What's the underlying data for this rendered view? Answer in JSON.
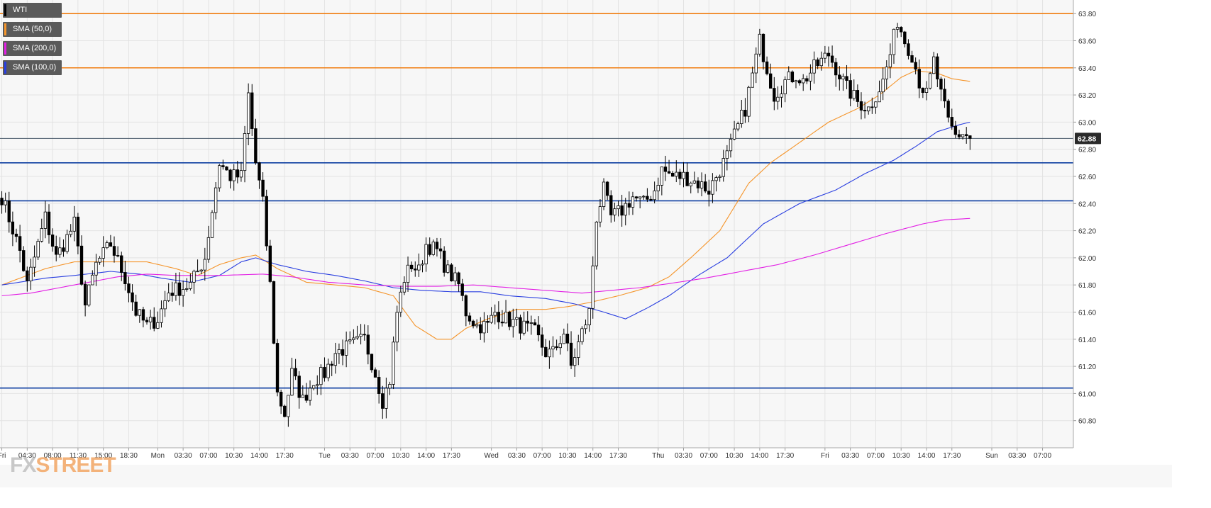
{
  "colors": {
    "plot_bg": "#f7f7f7",
    "grid": "#e3e3e3",
    "sma50": "#f5952b",
    "sma100": "#2a3fe0",
    "sma200": "#e21ee4",
    "resistance": "#f07d10",
    "support": "#0d3ea1",
    "candle_up_fill": "#ffffff",
    "candle_down_fill": "#000000",
    "price_tag_bg": "#2a2a2a"
  },
  "legend": {
    "items": [
      {
        "label": "WTI",
        "color": "#000000"
      },
      {
        "label": "SMA (50,0)",
        "color": "#f5952b"
      },
      {
        "label": "SMA (200,0)",
        "color": "#e21ee4"
      },
      {
        "label": "SMA (100,0)",
        "color": "#2a3fe0"
      }
    ]
  },
  "current_price_label": "62.88",
  "logo": {
    "prefix": "FX",
    "suffix": "STREET"
  },
  "chart_data": {
    "type": "candlestick",
    "title": "",
    "xlabel": "",
    "ylabel": "",
    "ylim": [
      60.6,
      63.9
    ],
    "y_ticks": [
      60.8,
      61.0,
      61.2,
      61.4,
      61.6,
      61.8,
      62.0,
      62.2,
      62.4,
      62.6,
      62.8,
      63.0,
      63.2,
      63.4,
      63.6,
      63.8
    ],
    "x_ticks": [
      {
        "label": "Fri",
        "index": 0
      },
      {
        "label": "04:30",
        "index": 7
      },
      {
        "label": "08:00",
        "index": 14
      },
      {
        "label": "11:30",
        "index": 21
      },
      {
        "label": "15:00",
        "index": 28
      },
      {
        "label": "18:30",
        "index": 35
      },
      {
        "label": "Mon",
        "index": 43
      },
      {
        "label": "03:30",
        "index": 50
      },
      {
        "label": "07:00",
        "index": 57
      },
      {
        "label": "10:30",
        "index": 64
      },
      {
        "label": "14:00",
        "index": 71
      },
      {
        "label": "17:30",
        "index": 78
      },
      {
        "label": "Tue",
        "index": 89
      },
      {
        "label": "03:30",
        "index": 96
      },
      {
        "label": "07:00",
        "index": 103
      },
      {
        "label": "10:30",
        "index": 110
      },
      {
        "label": "14:00",
        "index": 117
      },
      {
        "label": "17:30",
        "index": 124
      },
      {
        "label": "Wed",
        "index": 135
      },
      {
        "label": "03:30",
        "index": 142
      },
      {
        "label": "07:00",
        "index": 149
      },
      {
        "label": "10:30",
        "index": 156
      },
      {
        "label": "14:00",
        "index": 163
      },
      {
        "label": "17:30",
        "index": 170
      },
      {
        "label": "Thu",
        "index": 181
      },
      {
        "label": "03:30",
        "index": 188
      },
      {
        "label": "07:00",
        "index": 195
      },
      {
        "label": "10:30",
        "index": 202
      },
      {
        "label": "14:00",
        "index": 209
      },
      {
        "label": "17:30",
        "index": 216
      },
      {
        "label": "Fri",
        "index": 227
      },
      {
        "label": "03:30",
        "index": 234
      },
      {
        "label": "07:00",
        "index": 241
      },
      {
        "label": "10:30",
        "index": 248
      },
      {
        "label": "14:00",
        "index": 255
      },
      {
        "label": "17:30",
        "index": 262
      },
      {
        "label": "Sun",
        "index": 273
      },
      {
        "label": "03:30",
        "index": 280
      },
      {
        "label": "07:00",
        "index": 287
      }
    ],
    "x_slots": 296,
    "horizontal_levels": [
      {
        "value": 63.8,
        "kind": "resistance"
      },
      {
        "value": 63.4,
        "kind": "resistance"
      },
      {
        "value": 62.7,
        "kind": "support"
      },
      {
        "value": 62.42,
        "kind": "support"
      },
      {
        "value": 61.04,
        "kind": "support"
      }
    ],
    "current_price": 62.88,
    "price_anchors": [
      [
        0,
        62.45
      ],
      [
        5,
        62.05
      ],
      [
        7,
        61.8
      ],
      [
        12,
        62.3
      ],
      [
        15,
        62.0
      ],
      [
        20,
        62.25
      ],
      [
        23,
        61.65
      ],
      [
        26,
        61.95
      ],
      [
        30,
        62.1
      ],
      [
        34,
        61.85
      ],
      [
        37,
        61.6
      ],
      [
        40,
        61.5
      ],
      [
        43,
        61.55
      ],
      [
        46,
        61.75
      ],
      [
        52,
        61.8
      ],
      [
        56,
        62.0
      ],
      [
        60,
        62.7
      ],
      [
        63,
        62.6
      ],
      [
        66,
        62.6
      ],
      [
        68,
        63.2
      ],
      [
        70,
        62.7
      ],
      [
        72,
        62.4
      ],
      [
        74,
        61.8
      ],
      [
        76,
        61.0
      ],
      [
        78,
        60.85
      ],
      [
        80,
        61.15
      ],
      [
        83,
        60.95
      ],
      [
        86,
        61.1
      ],
      [
        89,
        61.15
      ],
      [
        92,
        61.3
      ],
      [
        96,
        61.35
      ],
      [
        100,
        61.4
      ],
      [
        103,
        61.15
      ],
      [
        105,
        60.95
      ],
      [
        107,
        61.1
      ],
      [
        109,
        61.6
      ],
      [
        111,
        61.85
      ],
      [
        113,
        61.95
      ],
      [
        115,
        61.9
      ],
      [
        117,
        62.1
      ],
      [
        120,
        62.05
      ],
      [
        123,
        61.9
      ],
      [
        126,
        61.8
      ],
      [
        128,
        61.6
      ],
      [
        131,
        61.5
      ],
      [
        134,
        61.5
      ],
      [
        136,
        61.6
      ],
      [
        139,
        61.55
      ],
      [
        143,
        61.5
      ],
      [
        147,
        61.45
      ],
      [
        150,
        61.3
      ],
      [
        152,
        61.3
      ],
      [
        155,
        61.45
      ],
      [
        157,
        61.2
      ],
      [
        160,
        61.45
      ],
      [
        162,
        61.6
      ],
      [
        164,
        62.3
      ],
      [
        166,
        62.5
      ],
      [
        168,
        62.3
      ],
      [
        171,
        62.35
      ],
      [
        174,
        62.45
      ],
      [
        177,
        62.4
      ],
      [
        180,
        62.5
      ],
      [
        182,
        62.65
      ],
      [
        185,
        62.6
      ],
      [
        188,
        62.6
      ],
      [
        192,
        62.55
      ],
      [
        195,
        62.5
      ],
      [
        197,
        62.6
      ],
      [
        200,
        62.75
      ],
      [
        202,
        62.9
      ],
      [
        205,
        63.1
      ],
      [
        207,
        63.35
      ],
      [
        209,
        63.6
      ],
      [
        211,
        63.4
      ],
      [
        213,
        63.2
      ],
      [
        216,
        63.3
      ],
      [
        219,
        63.35
      ],
      [
        221,
        63.3
      ],
      [
        224,
        63.4
      ],
      [
        226,
        63.45
      ],
      [
        228,
        63.5
      ],
      [
        230,
        63.4
      ],
      [
        233,
        63.25
      ],
      [
        236,
        63.15
      ],
      [
        239,
        63.1
      ],
      [
        241,
        63.2
      ],
      [
        243,
        63.3
      ],
      [
        245,
        63.5
      ],
      [
        247,
        63.75
      ],
      [
        249,
        63.6
      ],
      [
        251,
        63.5
      ],
      [
        253,
        63.3
      ],
      [
        255,
        63.2
      ],
      [
        257,
        63.45
      ],
      [
        259,
        63.2
      ],
      [
        261,
        63.0
      ],
      [
        263,
        62.9
      ],
      [
        265,
        62.92
      ],
      [
        267,
        62.88
      ]
    ],
    "series": [
      {
        "name": "SMA (50,0)",
        "color": "#f5952b",
        "points": [
          [
            0,
            61.8
          ],
          [
            12,
            61.92
          ],
          [
            20,
            61.97
          ],
          [
            30,
            61.97
          ],
          [
            40,
            61.97
          ],
          [
            48,
            61.92
          ],
          [
            54,
            61.87
          ],
          [
            60,
            61.95
          ],
          [
            66,
            62.0
          ],
          [
            70,
            62.02
          ],
          [
            76,
            61.92
          ],
          [
            84,
            61.82
          ],
          [
            92,
            61.8
          ],
          [
            100,
            61.78
          ],
          [
            108,
            61.72
          ],
          [
            114,
            61.5
          ],
          [
            120,
            61.4
          ],
          [
            124,
            61.4
          ],
          [
            128,
            61.48
          ],
          [
            134,
            61.55
          ],
          [
            142,
            61.62
          ],
          [
            150,
            61.62
          ],
          [
            156,
            61.64
          ],
          [
            162,
            61.67
          ],
          [
            170,
            61.72
          ],
          [
            178,
            61.78
          ],
          [
            184,
            61.86
          ],
          [
            190,
            62.0
          ],
          [
            198,
            62.2
          ],
          [
            206,
            62.55
          ],
          [
            212,
            62.7
          ],
          [
            220,
            62.85
          ],
          [
            228,
            63.0
          ],
          [
            236,
            63.1
          ],
          [
            242,
            63.2
          ],
          [
            248,
            63.33
          ],
          [
            252,
            63.38
          ],
          [
            258,
            63.36
          ],
          [
            262,
            63.32
          ],
          [
            267,
            63.3
          ]
        ]
      },
      {
        "name": "SMA (100,0)",
        "color": "#2a3fe0",
        "points": [
          [
            0,
            61.8
          ],
          [
            12,
            61.85
          ],
          [
            20,
            61.87
          ],
          [
            30,
            61.9
          ],
          [
            38,
            61.88
          ],
          [
            44,
            61.85
          ],
          [
            52,
            61.82
          ],
          [
            60,
            61.87
          ],
          [
            66,
            61.97
          ],
          [
            70,
            62.0
          ],
          [
            76,
            61.95
          ],
          [
            84,
            61.9
          ],
          [
            92,
            61.87
          ],
          [
            100,
            61.83
          ],
          [
            108,
            61.78
          ],
          [
            116,
            61.76
          ],
          [
            124,
            61.75
          ],
          [
            132,
            61.75
          ],
          [
            140,
            61.72
          ],
          [
            150,
            61.7
          ],
          [
            158,
            61.66
          ],
          [
            166,
            61.6
          ],
          [
            172,
            61.55
          ],
          [
            178,
            61.63
          ],
          [
            184,
            61.72
          ],
          [
            192,
            61.87
          ],
          [
            200,
            62.0
          ],
          [
            210,
            62.25
          ],
          [
            220,
            62.4
          ],
          [
            230,
            62.5
          ],
          [
            238,
            62.62
          ],
          [
            246,
            62.72
          ],
          [
            252,
            62.82
          ],
          [
            258,
            62.93
          ],
          [
            264,
            62.98
          ],
          [
            267,
            63.0
          ]
        ]
      },
      {
        "name": "SMA (200,0)",
        "color": "#e21ee4",
        "points": [
          [
            0,
            61.72
          ],
          [
            8,
            61.74
          ],
          [
            16,
            61.78
          ],
          [
            24,
            61.82
          ],
          [
            32,
            61.86
          ],
          [
            40,
            61.88
          ],
          [
            48,
            61.87
          ],
          [
            60,
            61.87
          ],
          [
            72,
            61.88
          ],
          [
            80,
            61.86
          ],
          [
            90,
            61.82
          ],
          [
            100,
            61.8
          ],
          [
            110,
            61.79
          ],
          [
            120,
            61.79
          ],
          [
            130,
            61.8
          ],
          [
            140,
            61.78
          ],
          [
            150,
            61.76
          ],
          [
            160,
            61.74
          ],
          [
            168,
            61.76
          ],
          [
            176,
            61.78
          ],
          [
            184,
            61.81
          ],
          [
            194,
            61.85
          ],
          [
            204,
            61.9
          ],
          [
            214,
            61.95
          ],
          [
            224,
            62.02
          ],
          [
            234,
            62.1
          ],
          [
            244,
            62.18
          ],
          [
            254,
            62.25
          ],
          [
            260,
            62.28
          ],
          [
            267,
            62.29
          ]
        ]
      }
    ],
    "last_index": 267
  }
}
